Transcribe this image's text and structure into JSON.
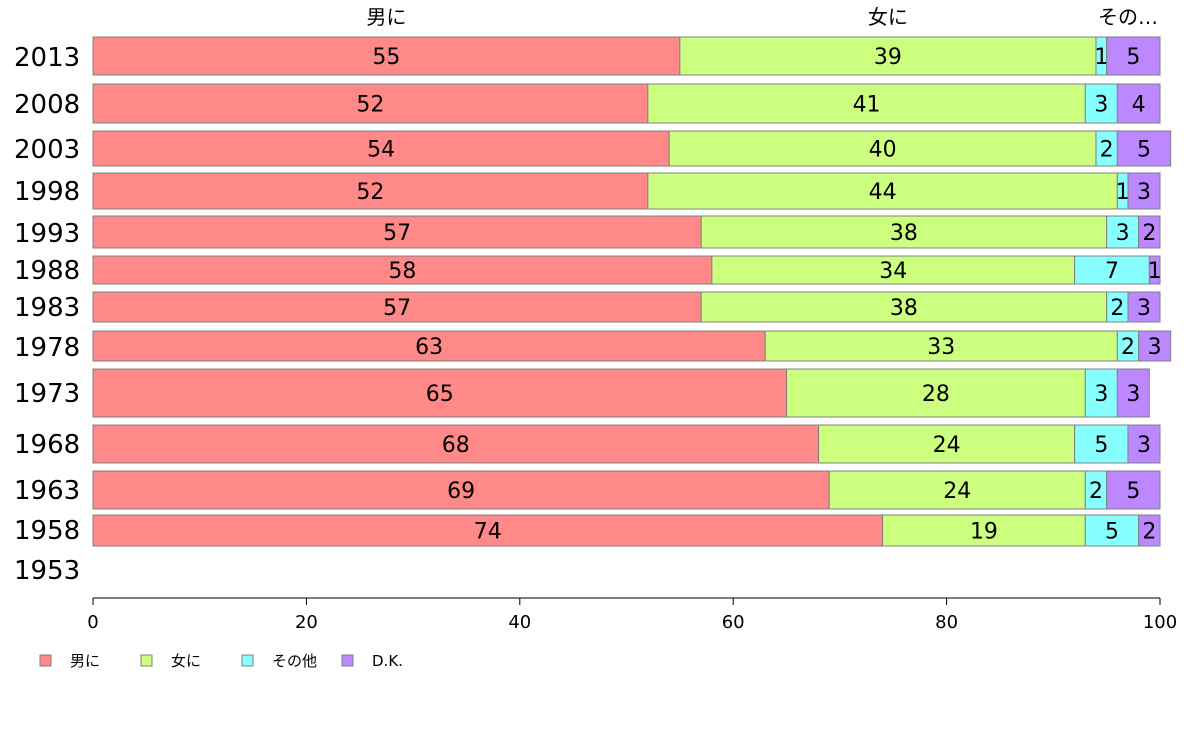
{
  "chart_data": {
    "type": "bar",
    "orientation": "horizontal",
    "stacked": true,
    "categories": [
      "2013",
      "2008",
      "2003",
      "1998",
      "1993",
      "1988",
      "1983",
      "1978",
      "1973",
      "1968",
      "1963",
      "1958",
      "1953"
    ],
    "series": [
      {
        "name": "男に",
        "color": "#ff8888",
        "values": [
          55,
          52,
          54,
          52,
          57,
          58,
          57,
          63,
          65,
          68,
          69,
          74,
          null
        ]
      },
      {
        "name": "女に",
        "color": "#ccff80",
        "values": [
          39,
          41,
          40,
          44,
          38,
          34,
          38,
          33,
          28,
          24,
          24,
          19,
          null
        ]
      },
      {
        "name": "その他",
        "color": "#88ffff",
        "values": [
          1,
          3,
          2,
          1,
          3,
          7,
          2,
          2,
          3,
          5,
          2,
          5,
          null
        ]
      },
      {
        "name": "D.K.",
        "color": "#bb88ff",
        "values": [
          5,
          4,
          5,
          3,
          2,
          1,
          3,
          3,
          3,
          3,
          5,
          2,
          null
        ]
      }
    ],
    "top_labels": [
      "男に",
      "女に",
      "その…"
    ],
    "xlim": [
      0,
      100
    ],
    "xticks": [
      "0",
      "20",
      "40",
      "60",
      "80",
      "100"
    ],
    "legend_position": "bottom-left",
    "grid": false
  }
}
